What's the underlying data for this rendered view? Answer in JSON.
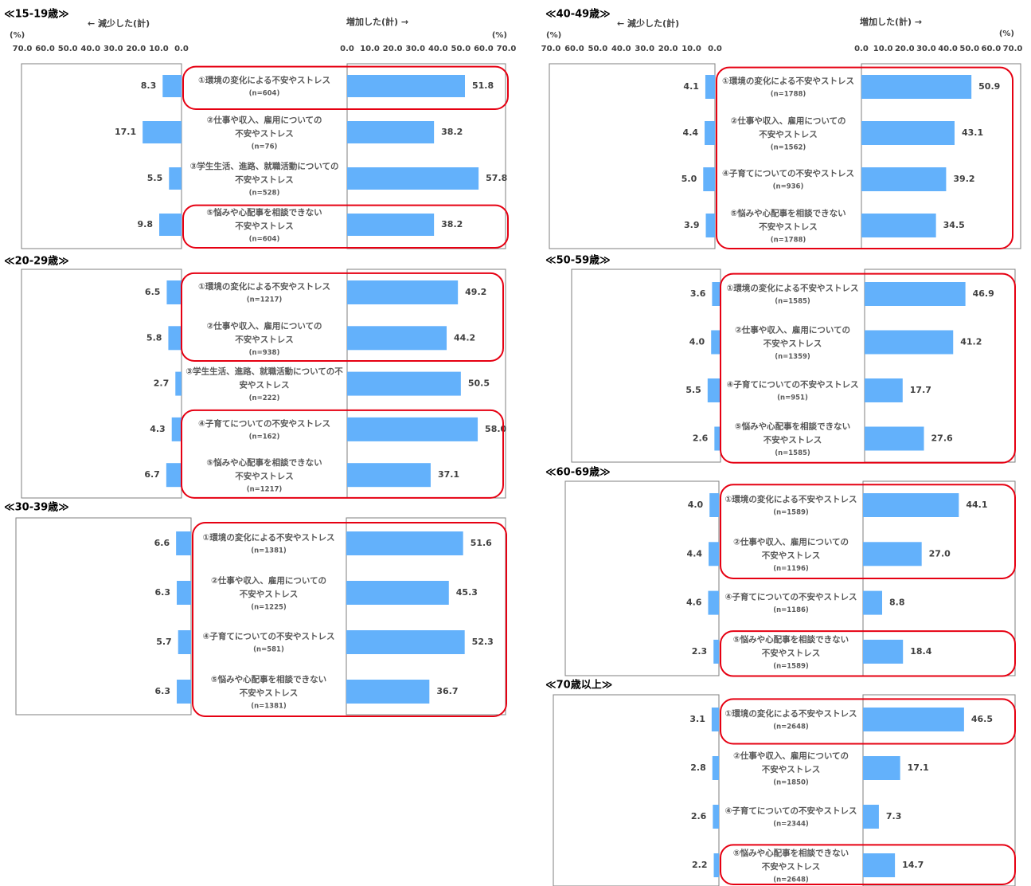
{
  "chart_data": [
    {
      "type": "butterfly",
      "title": "≪15-19歳≫",
      "color": "#63b1fb",
      "xlim": [
        0,
        70
      ],
      "left_axis_label": "← 減少した(計)",
      "right_axis_label": "増加した(計) →",
      "unit_label": "(%)",
      "left_ticks": [
        {
          "value": 70,
          "label": "70.0"
        },
        {
          "value": 60,
          "label": "60.0"
        },
        {
          "value": 50,
          "label": "50.0"
        },
        {
          "value": 40,
          "label": "40.0"
        },
        {
          "value": 30,
          "label": "30.0"
        },
        {
          "value": 20,
          "label": "20.0"
        },
        {
          "value": 10,
          "label": "10.0"
        },
        {
          "value": 0,
          "label": "0.0"
        }
      ],
      "right_ticks": [
        {
          "value": 0,
          "label": "0.0"
        },
        {
          "value": 10,
          "label": "10.0"
        },
        {
          "value": 20,
          "label": "20.0"
        },
        {
          "value": 30,
          "label": "30.0"
        },
        {
          "value": 40,
          "label": "40.0"
        },
        {
          "value": 50,
          "label": "50.0"
        },
        {
          "value": 60,
          "label": "60.0"
        },
        {
          "value": 70,
          "label": "70.0"
        }
      ],
      "categories": [
        [
          "①環境の変化による不安やストレス"
        ],
        [
          "②仕事や収入、雇用についての",
          "不安やストレス"
        ],
        [
          "③学生生活、進路、就職活動についての",
          "不安やストレス"
        ],
        [
          "⑤悩みや心配事を相談できない",
          "不安やストレス"
        ]
      ],
      "n_labels": [
        "(n=604)",
        "(n=76)",
        "(n=528)",
        "(n=604)"
      ],
      "decrease_values": [
        8.3,
        17.1,
        5.5,
        9.8
      ],
      "decrease_labels": [
        "8.3",
        "17.1",
        "5.5",
        "9.8"
      ],
      "increase_values": [
        51.8,
        38.2,
        57.8,
        38.2
      ],
      "increase_labels": [
        "51.8",
        "38.2",
        "57.8",
        "38.2"
      ],
      "highlights": [
        [
          0,
          0
        ],
        [
          3,
          3
        ]
      ]
    },
    {
      "type": "butterfly",
      "title": "≪20-29歳≫",
      "color": "#63b1fb",
      "xlim": [
        0,
        70
      ],
      "categories": [
        [
          "①環境の変化による不安やストレス"
        ],
        [
          "②仕事や収入、雇用についての",
          "不安やストレス"
        ],
        [
          "③学生生活、進路、就職活動についての不",
          "安やストレス"
        ],
        [
          "④子育てについての不安やストレス"
        ],
        [
          "⑤悩みや心配事を相談できない",
          "不安やストレス"
        ]
      ],
      "n_labels": [
        "(n=1217)",
        "(n=938)",
        "(n=222)",
        "(n=162)",
        "(n=1217)"
      ],
      "decrease_values": [
        6.5,
        5.8,
        2.7,
        4.3,
        6.7
      ],
      "decrease_labels": [
        "6.5",
        "5.8",
        "2.7",
        "4.3",
        "6.7"
      ],
      "increase_values": [
        49.2,
        44.2,
        50.5,
        58.0,
        37.1
      ],
      "increase_labels": [
        "49.2",
        "44.2",
        "50.5",
        "58.0",
        "37.1"
      ],
      "highlights": [
        [
          0,
          1
        ],
        [
          3,
          4
        ]
      ]
    },
    {
      "type": "butterfly",
      "title": "≪30-39歳≫",
      "color": "#63b1fb",
      "xlim": [
        0,
        70
      ],
      "categories": [
        [
          "①環境の変化による不安やストレス"
        ],
        [
          "②仕事や収入、雇用についての",
          "不安やストレス"
        ],
        [
          "④子育てについての不安やストレス"
        ],
        [
          "⑤悩みや心配事を相談できない",
          "不安やストレス"
        ]
      ],
      "n_labels": [
        "(n=1381)",
        "(n=1225)",
        "(n=581)",
        "(n=1381)"
      ],
      "decrease_values": [
        6.6,
        6.3,
        5.7,
        6.3
      ],
      "decrease_labels": [
        "6.6",
        "6.3",
        "5.7",
        "6.3"
      ],
      "increase_values": [
        51.6,
        45.3,
        52.3,
        36.7
      ],
      "increase_labels": [
        "51.6",
        "45.3",
        "52.3",
        "36.7"
      ],
      "highlights": [
        [
          0,
          3
        ]
      ]
    },
    {
      "type": "butterfly",
      "title": "≪40-49歳≫",
      "color": "#63b1fb",
      "xlim": [
        0,
        70
      ],
      "left_axis_label": "← 減少した(計)",
      "right_axis_label": "増加した(計) →",
      "unit_label": "(%)",
      "left_ticks": [
        {
          "value": 70,
          "label": "70.0"
        },
        {
          "value": 60,
          "label": "60.0"
        },
        {
          "value": 50,
          "label": "50.0"
        },
        {
          "value": 40,
          "label": "40.0"
        },
        {
          "value": 30,
          "label": "30.0"
        },
        {
          "value": 20,
          "label": "20.0"
        },
        {
          "value": 10,
          "label": "10.0"
        },
        {
          "value": 0,
          "label": "0.0"
        }
      ],
      "right_ticks": [
        {
          "value": 0,
          "label": "0.0"
        },
        {
          "value": 10,
          "label": "10.0"
        },
        {
          "value": 20,
          "label": "20.0"
        },
        {
          "value": 30,
          "label": "30.0"
        },
        {
          "value": 40,
          "label": "40.0"
        },
        {
          "value": 50,
          "label": "50.0"
        },
        {
          "value": 60,
          "label": "60.0"
        },
        {
          "value": 70,
          "label": "70.0"
        }
      ],
      "categories": [
        [
          "①環境の変化による不安やストレス"
        ],
        [
          "②仕事や収入、雇用についての",
          "不安やストレス"
        ],
        [
          "④子育てについての不安やストレス"
        ],
        [
          "⑤悩みや心配事を相談できない",
          "不安やストレス"
        ]
      ],
      "n_labels": [
        "(n=1788)",
        "(n=1562)",
        "(n=936)",
        "(n=1788)"
      ],
      "decrease_values": [
        4.1,
        4.4,
        5.0,
        3.9
      ],
      "decrease_labels": [
        "4.1",
        "4.4",
        "5.0",
        "3.9"
      ],
      "increase_values": [
        50.9,
        43.1,
        39.2,
        34.5
      ],
      "increase_labels": [
        "50.9",
        "43.1",
        "39.2",
        "34.5"
      ],
      "highlights": [
        [
          0,
          3
        ]
      ]
    },
    {
      "type": "butterfly",
      "title": "≪50-59歳≫",
      "color": "#63b1fb",
      "xlim": [
        0,
        70
      ],
      "categories": [
        [
          "①環境の変化による不安やストレス"
        ],
        [
          "②仕事や収入、雇用についての",
          "不安やストレス"
        ],
        [
          "④子育てについての不安やストレス"
        ],
        [
          "⑤悩みや心配事を相談できない",
          "不安やストレス"
        ]
      ],
      "n_labels": [
        "(n=1585)",
        "(n=1359)",
        "(n=951)",
        "(n=1585)"
      ],
      "decrease_values": [
        3.6,
        4.0,
        5.5,
        2.6
      ],
      "decrease_labels": [
        "3.6",
        "4.0",
        "5.5",
        "2.6"
      ],
      "increase_values": [
        46.9,
        41.2,
        17.7,
        27.6
      ],
      "increase_labels": [
        "46.9",
        "41.2",
        "17.7",
        "27.6"
      ],
      "highlights": [
        [
          0,
          3
        ]
      ]
    },
    {
      "type": "butterfly",
      "title": "≪60-69歳≫",
      "color": "#63b1fb",
      "xlim": [
        0,
        70
      ],
      "categories": [
        [
          "①環境の変化による不安やストレス"
        ],
        [
          "②仕事や収入、雇用についての",
          "不安やストレス"
        ],
        [
          "④子育てについての不安やストレス"
        ],
        [
          "⑤悩みや心配事を相談できない",
          "不安やストレス"
        ]
      ],
      "n_labels": [
        "(n=1589)",
        "(n=1196)",
        "(n=1186)",
        "(n=1589)"
      ],
      "decrease_values": [
        4.0,
        4.4,
        4.6,
        2.3
      ],
      "decrease_labels": [
        "4.0",
        "4.4",
        "4.6",
        "2.3"
      ],
      "increase_values": [
        44.1,
        27.0,
        8.8,
        18.4
      ],
      "increase_labels": [
        "44.1",
        "27.0",
        "8.8",
        "18.4"
      ],
      "highlights": [
        [
          0,
          1
        ],
        [
          3,
          3
        ]
      ]
    },
    {
      "type": "butterfly",
      "title": "≪70歳以上≫",
      "color": "#63b1fb",
      "xlim": [
        0,
        70
      ],
      "categories": [
        [
          "①環境の変化による不安やストレス"
        ],
        [
          "②仕事や収入、雇用についての",
          "不安やストレス"
        ],
        [
          "④子育てについての不安やストレス"
        ],
        [
          "⑤悩みや心配事を相談できない",
          "不安やストレス"
        ]
      ],
      "n_labels": [
        "(n=2648)",
        "(n=1850)",
        "(n=2344)",
        "(n=2648)"
      ],
      "decrease_values": [
        3.1,
        2.8,
        2.6,
        2.2
      ],
      "decrease_labels": [
        "3.1",
        "2.8",
        "2.6",
        "2.2"
      ],
      "increase_values": [
        46.5,
        17.1,
        7.3,
        14.7
      ],
      "increase_labels": [
        "46.5",
        "17.1",
        "7.3",
        "14.7"
      ],
      "highlights": [
        [
          0,
          0
        ],
        [
          3,
          3
        ]
      ]
    }
  ]
}
